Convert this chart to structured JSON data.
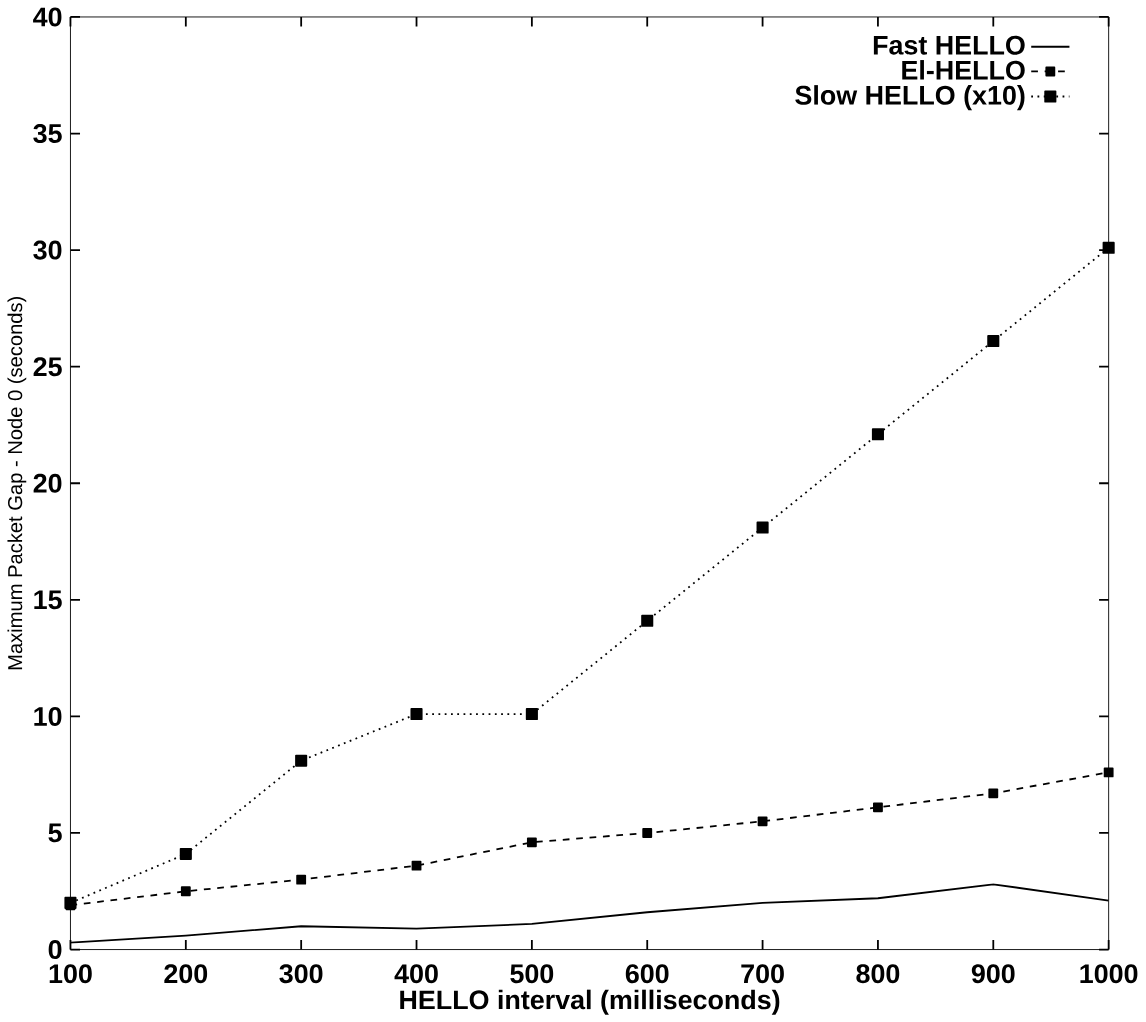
{
  "chart_data": {
    "type": "line",
    "xlabel": "HELLO interval (milliseconds)",
    "ylabel": "Maximum Packet Gap - Node 0 (seconds)",
    "x": [
      100,
      200,
      300,
      400,
      500,
      600,
      700,
      800,
      900,
      1000
    ],
    "series": [
      {
        "name": "Fast HELLO",
        "color": "#000000",
        "line_style": "solid",
        "marker": "none",
        "values": [
          0.3,
          0.6,
          1.0,
          0.9,
          1.1,
          1.6,
          2.0,
          2.2,
          2.8,
          2.1
        ]
      },
      {
        "name": "El-HELLO",
        "color": "#000000",
        "line_style": "dashed",
        "marker": "square",
        "values": [
          1.9,
          2.5,
          3.0,
          3.6,
          4.6,
          5.0,
          5.5,
          6.1,
          6.7,
          7.6
        ]
      },
      {
        "name": "Slow HELLO (x10)",
        "color": "#000000",
        "line_style": "dotted",
        "marker": "square",
        "values": [
          2.0,
          4.1,
          8.1,
          10.1,
          10.1,
          14.1,
          18.1,
          22.1,
          26.1,
          30.1
        ]
      }
    ],
    "xlim": [
      100,
      1000
    ],
    "ylim": [
      0,
      40
    ],
    "xticks": [
      100,
      200,
      300,
      400,
      500,
      600,
      700,
      800,
      900,
      1000
    ],
    "yticks": [
      0,
      5,
      10,
      15,
      20,
      25,
      30,
      35,
      40
    ],
    "grid": false,
    "legend": "top right"
  }
}
